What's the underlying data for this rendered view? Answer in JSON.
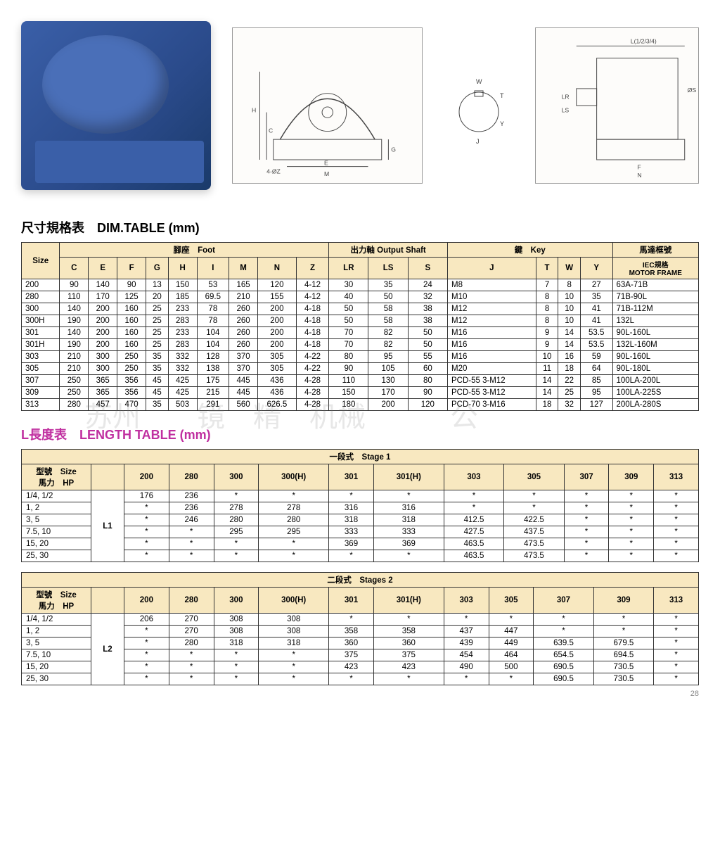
{
  "page_number": "28",
  "dim_table": {
    "title": "尺寸規格表　DIM.TABLE (mm)",
    "header_bg": "#f8e8c0",
    "group_headers": [
      "Size",
      "腳座　Foot",
      "出力軸 Output Shaft",
      "鍵　Key",
      "馬達框號"
    ],
    "columns": [
      "C",
      "E",
      "F",
      "G",
      "H",
      "I",
      "M",
      "N",
      "Z",
      "LR",
      "LS",
      "S",
      "J",
      "T",
      "W",
      "Y",
      "IEC規格 MOTOR FRAME"
    ],
    "rows": [
      {
        "size": "200",
        "c": "90",
        "e": "140",
        "f": "90",
        "g": "13",
        "h": "150",
        "i": "53",
        "m": "165",
        "n": "120",
        "z": "4-12",
        "lr": "30",
        "ls": "35",
        "s": "24",
        "j": "M8",
        "t": "7",
        "w": "8",
        "y": "27",
        "frame": "63A-71B"
      },
      {
        "size": "280",
        "c": "110",
        "e": "170",
        "f": "125",
        "g": "20",
        "h": "185",
        "i": "69.5",
        "m": "210",
        "n": "155",
        "z": "4-12",
        "lr": "40",
        "ls": "50",
        "s": "32",
        "j": "M10",
        "t": "8",
        "w": "10",
        "y": "35",
        "frame": "71B-90L"
      },
      {
        "size": "300",
        "c": "140",
        "e": "200",
        "f": "160",
        "g": "25",
        "h": "233",
        "i": "78",
        "m": "260",
        "n": "200",
        "z": "4-18",
        "lr": "50",
        "ls": "58",
        "s": "38",
        "j": "M12",
        "t": "8",
        "w": "10",
        "y": "41",
        "frame": "71B-112M"
      },
      {
        "size": "300H",
        "c": "190",
        "e": "200",
        "f": "160",
        "g": "25",
        "h": "283",
        "i": "78",
        "m": "260",
        "n": "200",
        "z": "4-18",
        "lr": "50",
        "ls": "58",
        "s": "38",
        "j": "M12",
        "t": "8",
        "w": "10",
        "y": "41",
        "frame": "132L"
      },
      {
        "size": "301",
        "c": "140",
        "e": "200",
        "f": "160",
        "g": "25",
        "h": "233",
        "i": "104",
        "m": "260",
        "n": "200",
        "z": "4-18",
        "lr": "70",
        "ls": "82",
        "s": "50",
        "j": "M16",
        "t": "9",
        "w": "14",
        "y": "53.5",
        "frame": "90L-160L"
      },
      {
        "size": "301H",
        "c": "190",
        "e": "200",
        "f": "160",
        "g": "25",
        "h": "283",
        "i": "104",
        "m": "260",
        "n": "200",
        "z": "4-18",
        "lr": "70",
        "ls": "82",
        "s": "50",
        "j": "M16",
        "t": "9",
        "w": "14",
        "y": "53.5",
        "frame": "132L-160M"
      },
      {
        "size": "303",
        "c": "210",
        "e": "300",
        "f": "250",
        "g": "35",
        "h": "332",
        "i": "128",
        "m": "370",
        "n": "305",
        "z": "4-22",
        "lr": "80",
        "ls": "95",
        "s": "55",
        "j": "M16",
        "t": "10",
        "w": "16",
        "y": "59",
        "frame": "90L-160L"
      },
      {
        "size": "305",
        "c": "210",
        "e": "300",
        "f": "250",
        "g": "35",
        "h": "332",
        "i": "138",
        "m": "370",
        "n": "305",
        "z": "4-22",
        "lr": "90",
        "ls": "105",
        "s": "60",
        "j": "M20",
        "t": "11",
        "w": "18",
        "y": "64",
        "frame": "90L-180L"
      },
      {
        "size": "307",
        "c": "250",
        "e": "365",
        "f": "356",
        "g": "45",
        "h": "425",
        "i": "175",
        "m": "445",
        "n": "436",
        "z": "4-28",
        "lr": "110",
        "ls": "130",
        "s": "80",
        "j": "PCD-55 3-M12",
        "t": "14",
        "w": "22",
        "y": "85",
        "frame": "100LA-200L"
      },
      {
        "size": "309",
        "c": "250",
        "e": "365",
        "f": "356",
        "g": "45",
        "h": "425",
        "i": "215",
        "m": "445",
        "n": "436",
        "z": "4-28",
        "lr": "150",
        "ls": "170",
        "s": "90",
        "j": "PCD-55 3-M12",
        "t": "14",
        "w": "25",
        "y": "95",
        "frame": "100LA-225S"
      },
      {
        "size": "313",
        "c": "280",
        "e": "457",
        "f": "470",
        "g": "35",
        "h": "503",
        "i": "291",
        "m": "560",
        "n": "626.5",
        "z": "4-28",
        "lr": "180",
        "ls": "200",
        "s": "120",
        "j": "PCD-70 3-M16",
        "t": "18",
        "w": "32",
        "y": "127",
        "frame": "200LA-280S"
      }
    ]
  },
  "length_table": {
    "title": "L長度表　LENGTH TABLE (mm)",
    "stage1": {
      "title": "一段式　Stage 1",
      "size_hp_label_1": "型號　Size",
      "size_hp_label_2": "馬力　HP",
      "sizes": [
        "200",
        "280",
        "300",
        "300(H)",
        "301",
        "301(H)",
        "303",
        "305",
        "307",
        "309",
        "313"
      ],
      "l_label": "L1",
      "rows": [
        {
          "hp": "1/4, 1/2",
          "v": [
            "176",
            "236",
            "*",
            "*",
            "*",
            "*",
            "*",
            "*",
            "*",
            "*",
            "*"
          ]
        },
        {
          "hp": "1, 2",
          "v": [
            "*",
            "236",
            "278",
            "278",
            "316",
            "316",
            "*",
            "*",
            "*",
            "*",
            "*"
          ]
        },
        {
          "hp": "3, 5",
          "v": [
            "*",
            "246",
            "280",
            "280",
            "318",
            "318",
            "412.5",
            "422.5",
            "*",
            "*",
            "*"
          ]
        },
        {
          "hp": "7.5, 10",
          "v": [
            "*",
            "*",
            "295",
            "295",
            "333",
            "333",
            "427.5",
            "437.5",
            "*",
            "*",
            "*"
          ]
        },
        {
          "hp": "15, 20",
          "v": [
            "*",
            "*",
            "*",
            "*",
            "369",
            "369",
            "463.5",
            "473.5",
            "*",
            "*",
            "*"
          ]
        },
        {
          "hp": "25, 30",
          "v": [
            "*",
            "*",
            "*",
            "*",
            "*",
            "*",
            "463.5",
            "473.5",
            "*",
            "*",
            "*"
          ]
        }
      ]
    },
    "stage2": {
      "title": "二段式　Stages 2",
      "l_label": "L2",
      "rows": [
        {
          "hp": "1/4, 1/2",
          "v": [
            "206",
            "270",
            "308",
            "308",
            "*",
            "*",
            "*",
            "*",
            "*",
            "*",
            "*"
          ]
        },
        {
          "hp": "1, 2",
          "v": [
            "*",
            "270",
            "308",
            "308",
            "358",
            "358",
            "437",
            "447",
            "*",
            "*",
            "*"
          ]
        },
        {
          "hp": "3, 5",
          "v": [
            "*",
            "280",
            "318",
            "318",
            "360",
            "360",
            "439",
            "449",
            "639.5",
            "679.5",
            "*"
          ]
        },
        {
          "hp": "7.5, 10",
          "v": [
            "*",
            "*",
            "*",
            "*",
            "375",
            "375",
            "454",
            "464",
            "654.5",
            "694.5",
            "*"
          ]
        },
        {
          "hp": "15, 20",
          "v": [
            "*",
            "*",
            "*",
            "*",
            "423",
            "423",
            "490",
            "500",
            "690.5",
            "730.5",
            "*"
          ]
        },
        {
          "hp": "25, 30",
          "v": [
            "*",
            "*",
            "*",
            "*",
            "*",
            "*",
            "*",
            "*",
            "690.5",
            "730.5",
            "*"
          ]
        }
      ]
    }
  },
  "diagram_labels": {
    "front": {
      "H": "H",
      "C": "C",
      "G": "G",
      "Z": "4-ØZ",
      "E": "E",
      "M": "M"
    },
    "shaft": {
      "W": "W",
      "T": "T",
      "Y": "Y",
      "J": "J"
    },
    "side": {
      "L": "L(1/2/3/4)",
      "S": "ØS",
      "LR": "LR",
      "LS": "LS",
      "F": "F",
      "N": "N"
    }
  }
}
